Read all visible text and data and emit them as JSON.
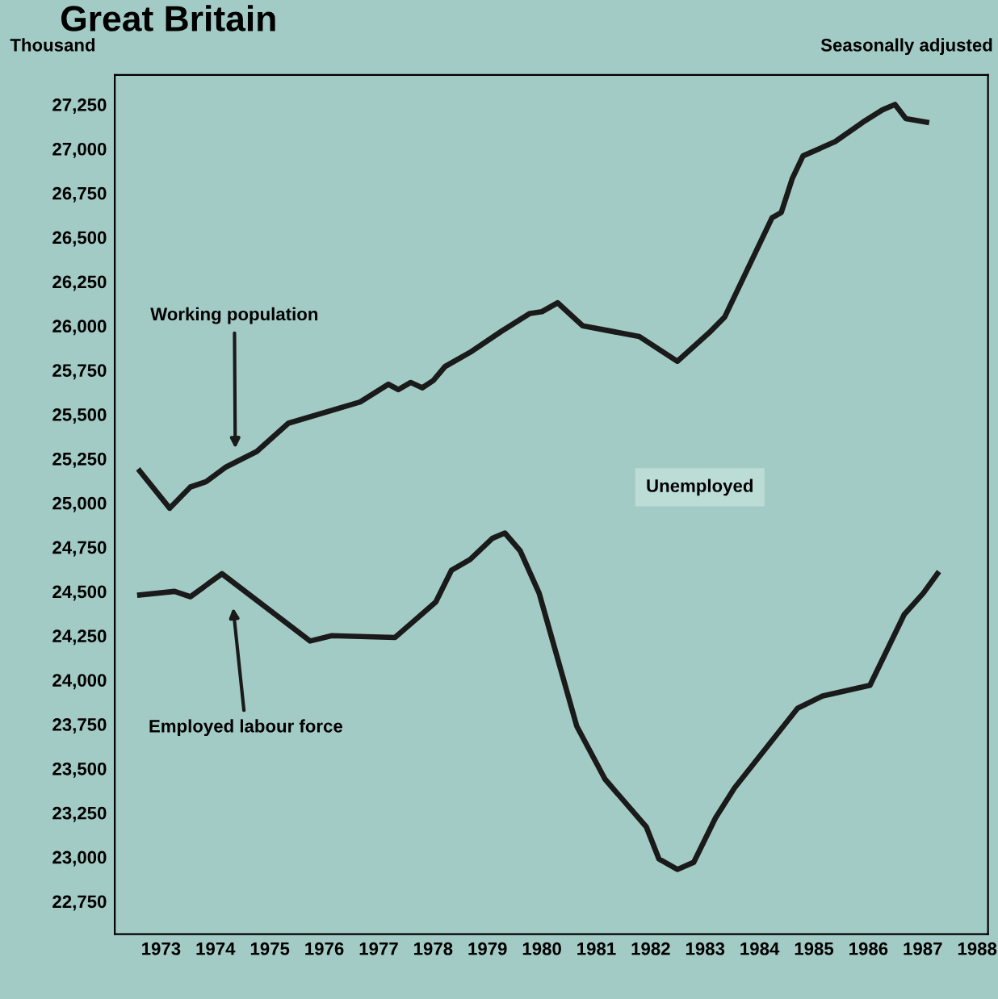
{
  "chart_data": {
    "type": "line",
    "title": "Great Britain",
    "ylabel": "Thousand",
    "annotations": [
      "Seasonally adjusted",
      "Unemployed",
      "Working population",
      "Employed labour force"
    ],
    "series": [
      {
        "color": "#1a1a1a",
        "x": [
          1973.11,
          1973.66,
          1974.04,
          1974.33,
          1974.68,
          1975.26,
          1975.84,
          1977.16,
          1977.68,
          1977.86,
          1978.09,
          1978.3,
          1978.5,
          1978.72,
          1979.18,
          1979.76,
          1980.28,
          1980.5,
          1980.79,
          1981.25,
          1982.29,
          1982.99,
          1983.57,
          1983.86,
          1984.73,
          1984.9,
          1985.1,
          1985.3,
          1985.89,
          1986.4,
          1986.76,
          1986.99,
          1987.19,
          1987.57
        ],
        "values": [
          25180,
          24970,
          25090,
          25120,
          25200,
          25290,
          25450,
          25570,
          25670,
          25640,
          25680,
          25650,
          25690,
          25770,
          25850,
          25970,
          26070,
          26080,
          26130,
          26000,
          25940,
          25800,
          25960,
          26050,
          26610,
          26640,
          26830,
          26960,
          27040,
          27150,
          27220,
          27250,
          27170,
          27150
        ]
      },
      {
        "color": "#1a1a1a",
        "x": [
          1973.11,
          1973.75,
          1974.04,
          1974.62,
          1976.24,
          1976.64,
          1977.8,
          1978.55,
          1978.84,
          1979.18,
          1979.59,
          1979.82,
          1980.1,
          1980.45,
          1981.14,
          1981.66,
          1982.42,
          1982.65,
          1982.99,
          1983.29,
          1983.69,
          1984.04,
          1985.2,
          1985.66,
          1986.53,
          1987.16,
          1987.51,
          1987.77
        ],
        "values": [
          24480,
          24500,
          24470,
          24600,
          24220,
          24250,
          24240,
          24440,
          24620,
          24680,
          24800,
          24830,
          24730,
          24490,
          23740,
          23440,
          23170,
          22990,
          22930,
          22970,
          23220,
          23390,
          23840,
          23910,
          23970,
          24370,
          24490,
          24600
        ]
      }
    ],
    "xlim": [
      1972.65,
      1988.7
    ],
    "ylim": [
      22565,
      27417
    ],
    "xticks": [
      {
        "value": 1973.5,
        "label": "1973"
      },
      {
        "value": 1974.5,
        "label": "1974"
      },
      {
        "value": 1975.5,
        "label": "1975"
      },
      {
        "value": 1976.5,
        "label": "1976"
      },
      {
        "value": 1977.5,
        "label": "1977"
      },
      {
        "value": 1978.5,
        "label": "1978"
      },
      {
        "value": 1979.5,
        "label": "1979"
      },
      {
        "value": 1980.5,
        "label": "1980"
      },
      {
        "value": 1981.5,
        "label": "1981"
      },
      {
        "value": 1982.5,
        "label": "1982"
      },
      {
        "value": 1983.5,
        "label": "1983"
      },
      {
        "value": 1984.5,
        "label": "1984"
      },
      {
        "value": 1985.5,
        "label": "1985"
      },
      {
        "value": 1986.5,
        "label": "1986"
      },
      {
        "value": 1987.5,
        "label": "1987"
      },
      {
        "value": 1988.5,
        "label": "1988"
      }
    ],
    "yticks": [
      {
        "value": 22750,
        "label": "22,750"
      },
      {
        "value": 23000,
        "label": "23,000"
      },
      {
        "value": 23250,
        "label": "23,250"
      },
      {
        "value": 23500,
        "label": "23,500"
      },
      {
        "value": 23750,
        "label": "23,750"
      },
      {
        "value": 24000,
        "label": "24,000"
      },
      {
        "value": 24250,
        "label": "24,250"
      },
      {
        "value": 24500,
        "label": "24,500"
      },
      {
        "value": 24750,
        "label": "24,750"
      },
      {
        "value": 25000,
        "label": "25,000"
      },
      {
        "value": 25250,
        "label": "25,250"
      },
      {
        "value": 25500,
        "label": "25,500"
      },
      {
        "value": 25750,
        "label": "25,750"
      },
      {
        "value": 26000,
        "label": "26,000"
      },
      {
        "value": 26250,
        "label": "26,250"
      },
      {
        "value": 26500,
        "label": "26,500"
      },
      {
        "value": 26750,
        "label": "26,750"
      },
      {
        "value": 27000,
        "label": "27,000"
      },
      {
        "value": 27250,
        "label": "27,250"
      }
    ],
    "grid": false,
    "legend": false,
    "marker": "none",
    "line_style": "solid"
  }
}
